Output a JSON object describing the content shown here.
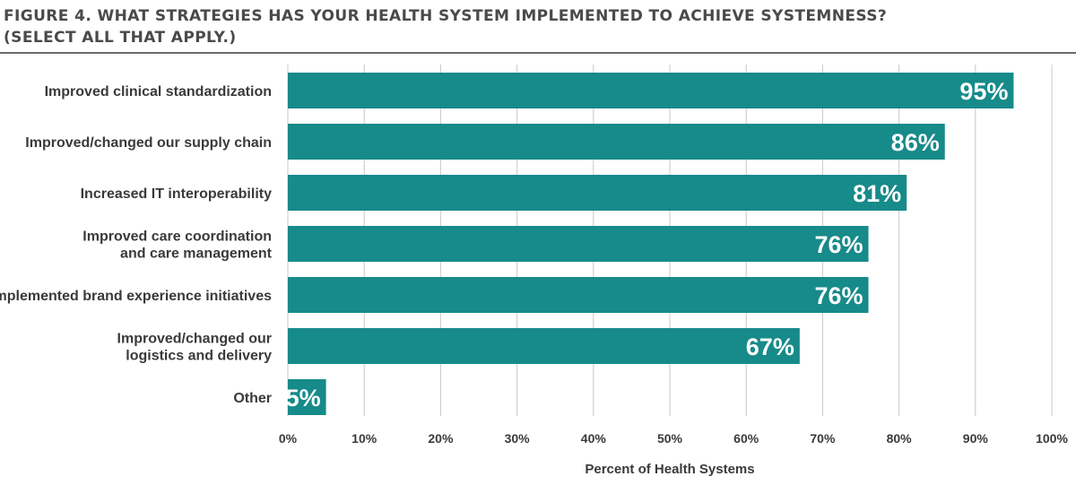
{
  "figure": {
    "title_line1": "FIGURE 4. WHAT STRATEGIES HAS YOUR HEALTH SYSTEM IMPLEMENTED TO ACHIEVE SYSTEMNESS?",
    "title_line2": "(SELECT ALL THAT APPLY.)"
  },
  "colors": {
    "bar": "#178a8a",
    "grid": "#c8c8c8",
    "text": "#3a3a3a",
    "bar_label": "#ffffff"
  },
  "chart_data": {
    "type": "bar",
    "orientation": "horizontal",
    "title": "FIGURE 4. WHAT STRATEGIES HAS YOUR HEALTH SYSTEM IMPLEMENTED TO ACHIEVE SYSTEMNESS? (SELECT ALL THAT APPLY.)",
    "categories": [
      [
        "Improved clinical standardization"
      ],
      [
        "Improved/changed our supply chain"
      ],
      [
        "Increased IT interoperability"
      ],
      [
        "Improved care coordination",
        "and care management"
      ],
      [
        "Implemented brand experience initiatives"
      ],
      [
        "Improved/changed our",
        "logistics and delivery"
      ],
      [
        "Other"
      ]
    ],
    "values": [
      95,
      86,
      81,
      76,
      76,
      67,
      5
    ],
    "value_labels": [
      "95%",
      "86%",
      "81%",
      "76%",
      "76%",
      "67%",
      "5%"
    ],
    "xlabel": "Percent of Health Systems",
    "ylabel": "",
    "xlim": [
      0,
      100
    ],
    "xticks": [
      0,
      10,
      20,
      30,
      40,
      50,
      60,
      70,
      80,
      90,
      100
    ],
    "xtick_labels": [
      "0%",
      "10%",
      "20%",
      "30%",
      "40%",
      "50%",
      "60%",
      "70%",
      "80%",
      "90%",
      "100%"
    ],
    "grid": "vertical"
  }
}
